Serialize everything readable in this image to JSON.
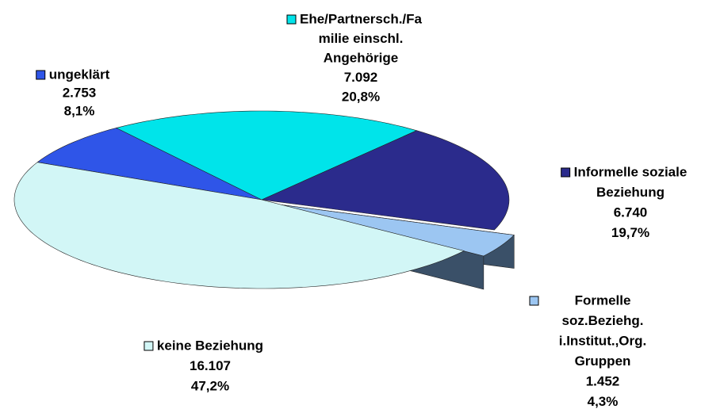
{
  "chart_data": {
    "type": "pie3d",
    "categories": [
      [
        "ungeklärt"
      ],
      [
        "Ehe/Partnersch./Fa",
        "milie einschl.",
        "Angehörige"
      ],
      [
        "Informelle soziale",
        "Beziehung"
      ],
      [
        "Formelle",
        "soz.Beziehg.",
        "i.Institut.,Org.",
        "Gruppen"
      ],
      [
        "keine Beziehung"
      ]
    ],
    "values": [
      2753,
      7092,
      6740,
      1452,
      16107
    ],
    "value_labels": [
      "2.753",
      "7.092",
      "6.740",
      "1.452",
      "16.107"
    ],
    "percents": [
      8.1,
      20.8,
      19.7,
      4.3,
      47.2
    ],
    "percent_labels": [
      "8,1%",
      "20,8%",
      "19,7%",
      "4,3%",
      "47,2%"
    ],
    "colors": [
      "#2f55e8",
      "#00e4ea",
      "#2b2b8c",
      "#9cc6f2",
      "#d2f6f6"
    ]
  }
}
